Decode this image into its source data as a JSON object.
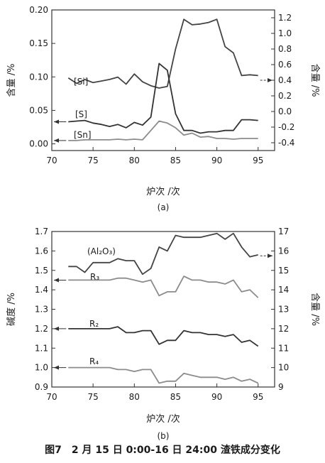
{
  "chart_data": [
    {
      "type": "line",
      "subfig_label": "(a)",
      "xlabel": "炉次 /次",
      "ylabel_left": "含量 /%",
      "ylabel_right": "含量 /%",
      "xlim": [
        70,
        97
      ],
      "ylim_left": [
        -0.01,
        0.2
      ],
      "ylim_right": [
        -0.5,
        1.3
      ],
      "xticks": [
        "70",
        "75",
        "80",
        "85",
        "90",
        "95"
      ],
      "yticks_left": [
        "0.00",
        "0.05",
        "0.10",
        "0.15",
        "0.20"
      ],
      "yticks_right": [
        "-0.4",
        "-0.2",
        "0.0",
        "0.2",
        "0.4",
        "0.6",
        "0.8",
        "1.0",
        "1.2"
      ],
      "series": [
        {
          "name": "[Si]",
          "axis": "right",
          "color": "#444444",
          "x": [
            72,
            73,
            74,
            75,
            76,
            77,
            78,
            79,
            80,
            81,
            82,
            83,
            84,
            85,
            86,
            87,
            88,
            89,
            90,
            91,
            92,
            93,
            94,
            95
          ],
          "y": [
            0.43,
            0.36,
            0.41,
            0.37,
            0.39,
            0.41,
            0.44,
            0.35,
            0.48,
            0.38,
            0.33,
            0.3,
            0.32,
            0.8,
            1.18,
            1.11,
            1.12,
            1.14,
            1.18,
            0.83,
            0.75,
            0.46,
            0.47,
            0.46
          ]
        },
        {
          "name": "[S]",
          "axis": "left",
          "color": "#333333",
          "x": [
            72,
            73,
            74,
            75,
            76,
            77,
            78,
            79,
            80,
            81,
            82,
            83,
            84,
            85,
            86,
            87,
            88,
            89,
            90,
            91,
            92,
            93,
            94,
            95
          ],
          "y": [
            0.033,
            0.034,
            0.035,
            0.031,
            0.029,
            0.026,
            0.029,
            0.024,
            0.032,
            0.028,
            0.04,
            0.12,
            0.11,
            0.045,
            0.02,
            0.02,
            0.016,
            0.018,
            0.018,
            0.02,
            0.02,
            0.036,
            0.036,
            0.035
          ]
        },
        {
          "name": "[Sn]",
          "axis": "left",
          "color": "#8c8c8c",
          "x": [
            72,
            73,
            74,
            75,
            76,
            77,
            78,
            79,
            80,
            81,
            82,
            83,
            84,
            85,
            86,
            87,
            88,
            89,
            90,
            91,
            92,
            93,
            94,
            95
          ],
          "y": [
            0.005,
            0.005,
            0.006,
            0.006,
            0.006,
            0.006,
            0.007,
            0.006,
            0.007,
            0.006,
            0.02,
            0.034,
            0.031,
            0.024,
            0.013,
            0.016,
            0.01,
            0.011,
            0.008,
            0.008,
            0.007,
            0.008,
            0.008,
            0.008
          ]
        }
      ]
    },
    {
      "type": "line",
      "subfig_label": "(b)",
      "xlabel": "炉次 /次",
      "ylabel_left": "碱度 /%",
      "ylabel_right": "含量 /%",
      "xlim": [
        70,
        97
      ],
      "ylim_left": [
        0.9,
        1.7
      ],
      "ylim_right": [
        9,
        17
      ],
      "xticks": [
        "70",
        "75",
        "80",
        "85",
        "90",
        "95"
      ],
      "yticks_left": [
        "0.9",
        "1.0",
        "1.1",
        "1.2",
        "1.3",
        "1.4",
        "1.5",
        "1.6",
        "1.7"
      ],
      "yticks_right": [
        "9",
        "10",
        "11",
        "12",
        "13",
        "14",
        "15",
        "16",
        "17"
      ],
      "series": [
        {
          "name": "(Al₂O₃)",
          "axis": "right",
          "color": "#444444",
          "x": [
            72,
            73,
            74,
            75,
            76,
            77,
            78,
            79,
            80,
            81,
            82,
            83,
            84,
            85,
            86,
            87,
            88,
            89,
            90,
            91,
            92,
            93,
            94,
            95
          ],
          "y": [
            15.2,
            15.2,
            14.9,
            15.4,
            15.4,
            15.4,
            15.6,
            15.5,
            15.5,
            14.8,
            15.1,
            16.2,
            16.0,
            16.8,
            16.7,
            16.7,
            16.7,
            16.8,
            16.9,
            16.6,
            16.9,
            16.2,
            15.7,
            15.8
          ]
        },
        {
          "name": "R₃",
          "axis": "left",
          "color": "#8c8c8c",
          "x": [
            72,
            73,
            74,
            75,
            76,
            77,
            78,
            79,
            80,
            81,
            82,
            83,
            84,
            85,
            86,
            87,
            88,
            89,
            90,
            91,
            92,
            93,
            94,
            95
          ],
          "y": [
            1.45,
            1.45,
            1.45,
            1.45,
            1.45,
            1.45,
            1.46,
            1.46,
            1.45,
            1.44,
            1.45,
            1.37,
            1.39,
            1.39,
            1.47,
            1.45,
            1.45,
            1.44,
            1.44,
            1.43,
            1.45,
            1.39,
            1.4,
            1.36
          ]
        },
        {
          "name": "R₂",
          "axis": "left",
          "color": "#333333",
          "x": [
            72,
            73,
            74,
            75,
            76,
            77,
            78,
            79,
            80,
            81,
            82,
            83,
            84,
            85,
            86,
            87,
            88,
            89,
            90,
            91,
            92,
            93,
            94,
            95
          ],
          "y": [
            1.2,
            1.2,
            1.2,
            1.2,
            1.2,
            1.2,
            1.21,
            1.18,
            1.18,
            1.19,
            1.19,
            1.12,
            1.14,
            1.14,
            1.19,
            1.18,
            1.18,
            1.17,
            1.17,
            1.16,
            1.17,
            1.13,
            1.14,
            1.11
          ]
        },
        {
          "name": "R₄",
          "axis": "left",
          "color": "#8c8c8c",
          "x": [
            72,
            73,
            74,
            75,
            76,
            77,
            78,
            79,
            80,
            81,
            82,
            83,
            84,
            85,
            86,
            87,
            88,
            89,
            90,
            91,
            92,
            93,
            94,
            95
          ],
          "y": [
            1.0,
            1.0,
            1.0,
            1.0,
            1.0,
            1.0,
            0.99,
            0.99,
            0.98,
            0.99,
            0.99,
            0.92,
            0.93,
            0.93,
            0.97,
            0.96,
            0.95,
            0.95,
            0.95,
            0.94,
            0.95,
            0.93,
            0.94,
            0.92
          ]
        }
      ]
    }
  ],
  "caption": "图7　2 月 15 日 0:00-16 日 24:00 渣铁成分变化"
}
